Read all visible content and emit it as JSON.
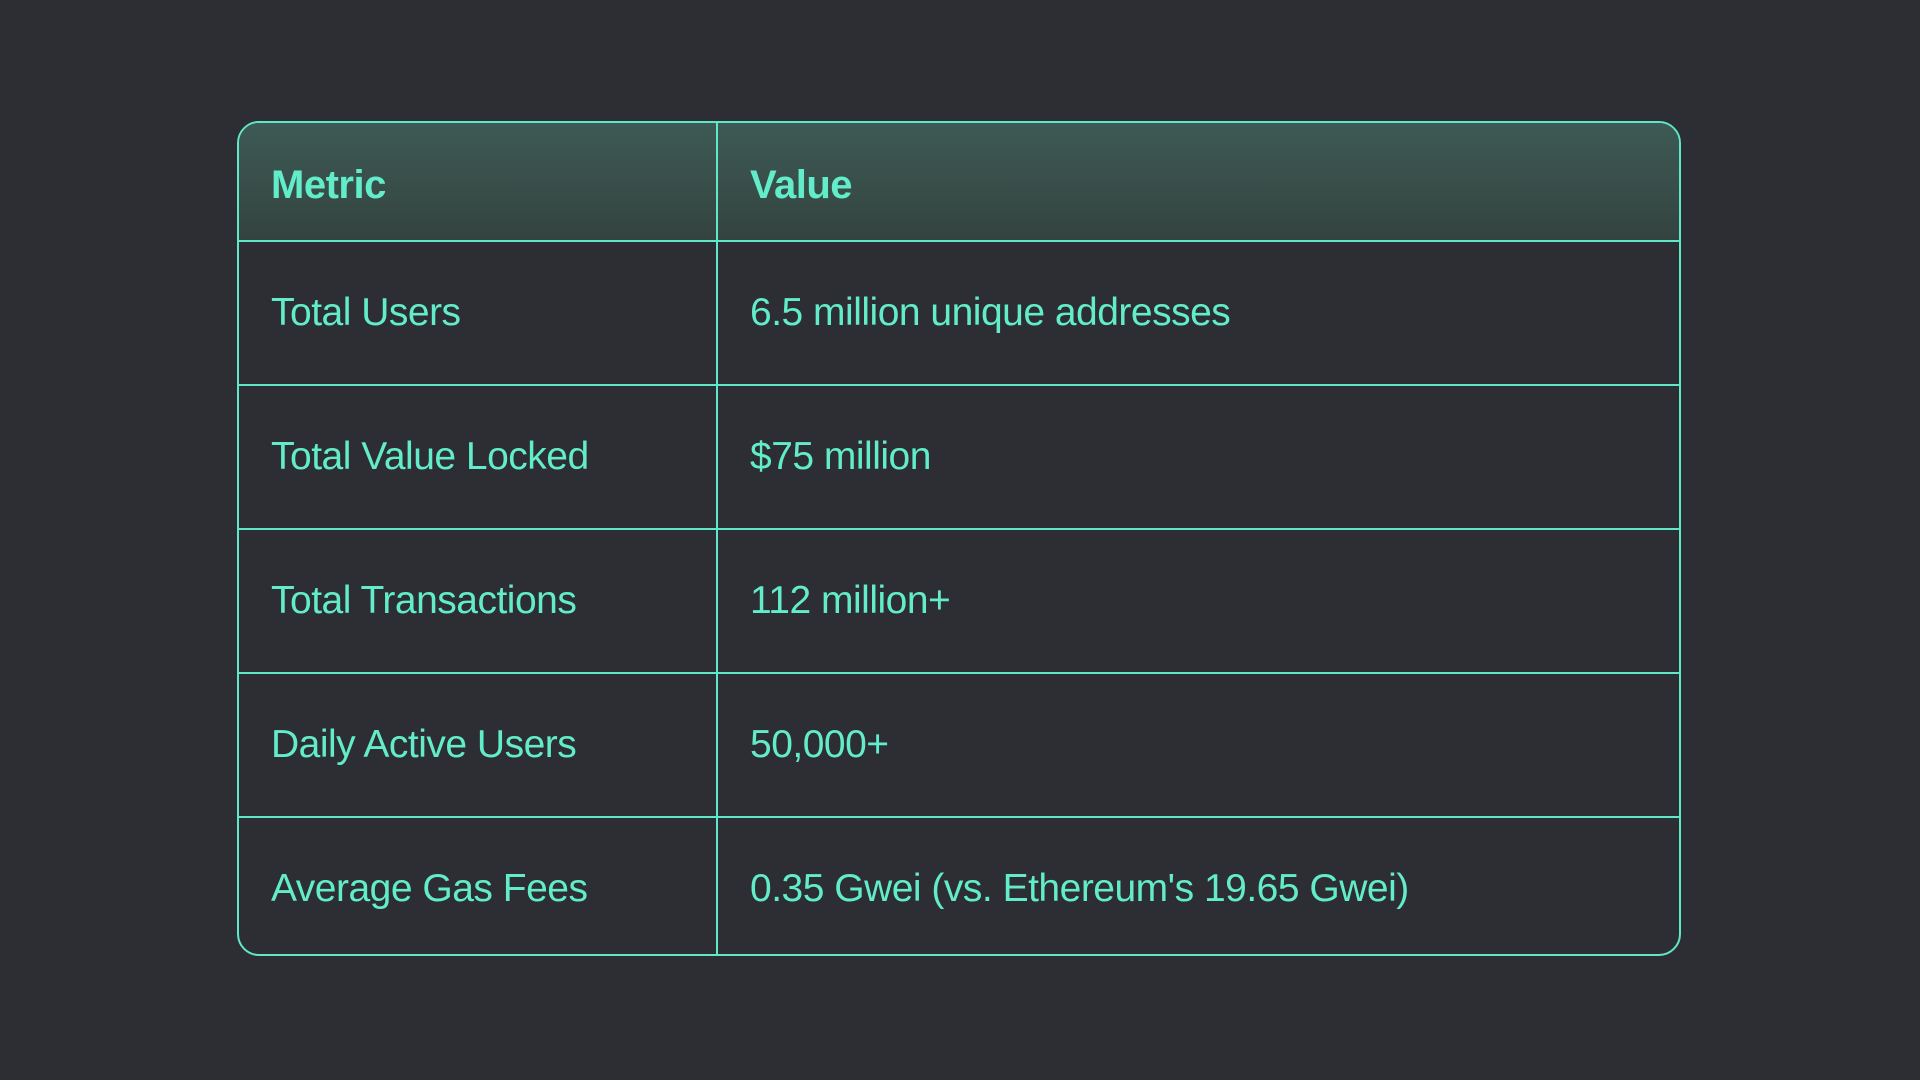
{
  "table": {
    "headers": [
      "Metric",
      "Value"
    ],
    "rows": [
      {
        "metric": "Total Users",
        "value": "6.5 million unique addresses"
      },
      {
        "metric": "Total Value Locked",
        "value": "$75 million"
      },
      {
        "metric": "Total Transactions",
        "value": "112 million+"
      },
      {
        "metric": "Daily Active Users",
        "value": "50,000+"
      },
      {
        "metric": "Average Gas Fees",
        "value": "0.35 Gwei (vs. Ethereum's 19.65 Gwei)"
      }
    ]
  },
  "colors": {
    "accent": "#62ecc9",
    "background": "#2c2e33",
    "header": "#3d5a55"
  }
}
